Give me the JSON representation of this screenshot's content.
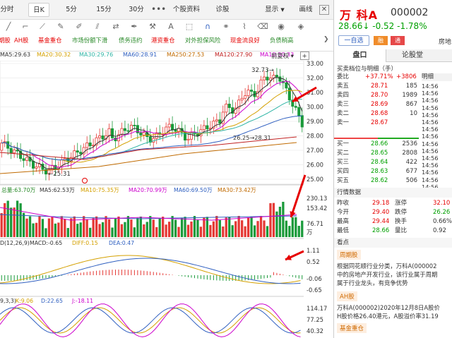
{
  "toolbar": {
    "tabs": [
      "分时",
      "日K",
      "5分",
      "15分",
      "30分",
      "更多",
      "个股资料",
      "诊股",
      "显示",
      "画线"
    ],
    "more_icon": "more-dots-icon",
    "close_icon": "close-icon"
  },
  "draw_tools": {
    "icons": [
      "line-icon",
      "crop-icon",
      "ray-icon",
      "pen-icon",
      "brush-icon",
      "segment-icon",
      "arrows-icon",
      "hammer-icon",
      "text-icon",
      "stamp-icon",
      "magnet-icon",
      "chain-icon",
      "eraser-icon",
      "layers-icon"
    ]
  },
  "strategies": [
    {
      "label": "期股",
      "color": "#e60000"
    },
    {
      "label": "AH股",
      "color": "#e60000"
    },
    {
      "label": "基金重仓",
      "color": "#e60000"
    },
    {
      "label": "市场份额下滑",
      "color": "#2a8a2a"
    },
    {
      "label": "债务违约",
      "color": "#2a8a2a"
    },
    {
      "label": "港资重仓",
      "color": "#e60000"
    },
    {
      "label": "对外担保风险",
      "color": "#2a8a2a"
    },
    {
      "label": "现金流良好",
      "color": "#e60000"
    },
    {
      "label": "负债稍高",
      "color": "#2a8a2a"
    }
  ],
  "ma_line": [
    {
      "text": "MA5:29.63",
      "color": "#333"
    },
    {
      "text": "MA20:30.32",
      "color": "#d4a000"
    },
    {
      "text": "MA30:29.76",
      "color": "#2fb5a6"
    },
    {
      "text": "MA60:28.91",
      "color": "#3060c0"
    },
    {
      "text": "MA250:27.53",
      "color": "#c06a00"
    },
    {
      "text": "MA120:27.90",
      "color": "#c02020"
    },
    {
      "text": "MA10:30.33",
      "color": "#cc00cc"
    }
  ],
  "prev_restore": "前复权",
  "price_axis": [
    "33.00",
    "32.00",
    "31.00",
    "30.00",
    "29.00",
    "28.00",
    "27.00",
    "26.00",
    "25.00"
  ],
  "annotations": {
    "high": "32.73",
    "low": "25.31",
    "range": "26.25→28.31"
  },
  "volume": {
    "legend": [
      {
        "text": "总量:63.70万",
        "color": "#2a8a2a"
      },
      {
        "text": "MA5:62.53万",
        "color": "#333"
      },
      {
        "text": "MA10:75.35万",
        "color": "#d4a000"
      },
      {
        "text": "MA20:70.99万",
        "color": "#cc00cc"
      },
      {
        "text": "MA60:69.50万",
        "color": "#3060c0"
      },
      {
        "text": "MA30:73.42万",
        "color": "#c06a00"
      }
    ],
    "axis": [
      "230.13",
      "153.42",
      "76.71",
      "万"
    ]
  },
  "macd": {
    "legend": [
      {
        "text": "D(12,26,9)",
        "color": "#333"
      },
      {
        "text": "MACD:-0.65",
        "color": "#333"
      },
      {
        "text": "DIFF:0.15",
        "color": "#d4a000"
      },
      {
        "text": "DEA:0.47",
        "color": "#3060c0"
      }
    ],
    "axis": [
      "1.11",
      "0.52",
      "-0.06",
      "-0.65"
    ]
  },
  "kdj": {
    "legend": [
      {
        "text": "9,3,3)",
        "color": "#333"
      },
      {
        "text": "K:9.06",
        "color": "#d4a000"
      },
      {
        "text": "D:22.65",
        "color": "#3060c0"
      },
      {
        "text": "J:-18.11",
        "color": "#cc00cc"
      }
    ],
    "axis": [
      "114.17",
      "77.25",
      "40.32"
    ]
  },
  "stock": {
    "name": "万 科A",
    "code": "000002",
    "price": "28.66",
    "arrow": "↓",
    "change": "-0.52",
    "pct": "-1.78%",
    "self_select": "一自选",
    "badge1": "融",
    "badge2": "通",
    "right_tab": "房地"
  },
  "right_tabs": {
    "left": "盘口",
    "right": "论股堂",
    "extra": "明细"
  },
  "book": {
    "title": "买卖档位与明细（手）",
    "wei": "委比",
    "wei_pct": "+37.71%",
    "wei_diff": "+3806",
    "asks": [
      {
        "label": "卖五",
        "price": "28.71",
        "vol": "185"
      },
      {
        "label": "卖四",
        "price": "28.70",
        "vol": "1989"
      },
      {
        "label": "卖三",
        "price": "28.69",
        "vol": "867"
      },
      {
        "label": "卖二",
        "price": "28.68",
        "vol": "10"
      },
      {
        "label": "卖一",
        "price": "28.67",
        "vol": ""
      }
    ],
    "bids": [
      {
        "label": "买一",
        "price": "28.66",
        "vol": "2536"
      },
      {
        "label": "买二",
        "price": "28.65",
        "vol": "2808"
      },
      {
        "label": "买三",
        "price": "28.64",
        "vol": "422"
      },
      {
        "label": "买四",
        "price": "28.63",
        "vol": "677"
      },
      {
        "label": "买五",
        "price": "28.62",
        "vol": "506"
      }
    ],
    "times": [
      "14:56",
      "14:56",
      "14:56",
      "14:56",
      "14:56",
      "14:56",
      "14:56",
      "14:56",
      "14:56",
      "14:56",
      "14:56",
      "14:56",
      "14:56",
      "14:56",
      "14:56"
    ]
  },
  "quote": {
    "title": "行情数据",
    "rows": [
      [
        "昨收",
        "29.18",
        "涨停",
        "32.10"
      ],
      [
        "今开",
        "29.40",
        "跌停",
        "26.26"
      ],
      [
        "最高",
        "29.44",
        "换手",
        "0.66%"
      ],
      [
        "最低",
        "28.66",
        "量比",
        "0.92"
      ]
    ]
  },
  "news": {
    "title": "看点",
    "tag1": "周期股",
    "text1": [
      "根据同花顺行业分类，万科A(000002",
      "中的房地产开发行业，该行业属于周期",
      "属于行业龙头，有竞争优势"
    ],
    "tag2": "AH股",
    "text2": [
      "万科A(000002)2020年12月8日A股价",
      "H股价格26.40港元，A股溢价率31.19"
    ],
    "tag3": "基金重仓"
  },
  "arrow_color": "#e60000"
}
